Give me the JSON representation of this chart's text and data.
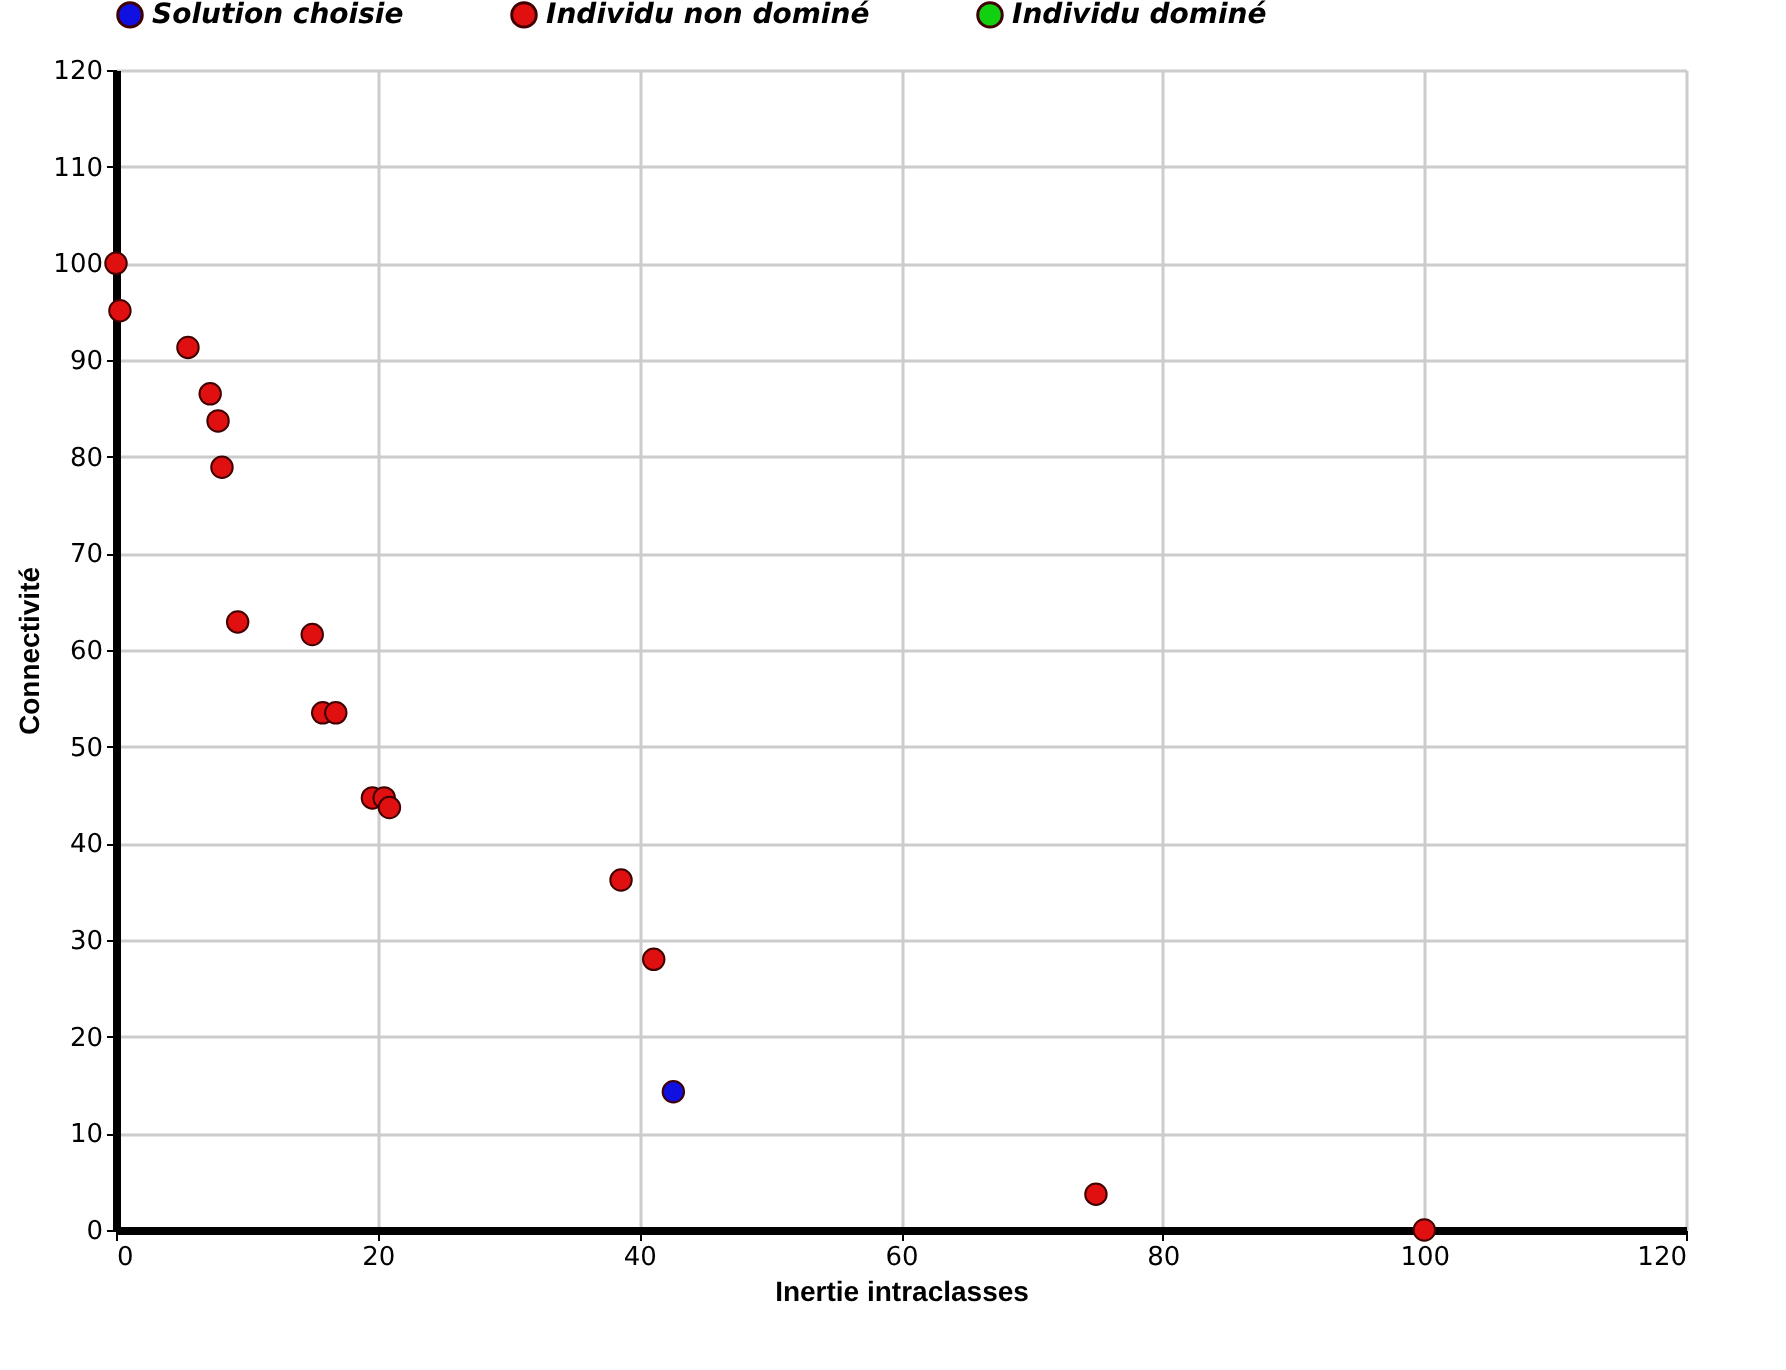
{
  "chart_data": {
    "type": "scatter",
    "xlabel": "Inertie intraclasses",
    "ylabel": "Connectivité",
    "xlim": [
      0,
      120
    ],
    "xticks": [
      0,
      20,
      40,
      60,
      80,
      100,
      120
    ],
    "ylim": [
      0,
      120
    ],
    "yticks": [
      0,
      10,
      20,
      30,
      40,
      50,
      60,
      70,
      80,
      90,
      100,
      110,
      120
    ],
    "grid": true,
    "legend": "top",
    "marker": "circle",
    "series": [
      {
        "name": "Solution choisie",
        "color": "#1010e0",
        "x": [
          42.6
        ],
        "values": [
          14.3
        ]
      },
      {
        "name": "Individu non dominé",
        "color": "#e01010",
        "x": [
          0,
          0.3,
          5.5,
          7.2,
          7.8,
          8.1,
          9.3,
          15.0,
          15.8,
          16.8,
          19.6,
          20.5,
          20.9,
          38.6,
          41.1,
          74.9,
          100
        ],
        "values": [
          100,
          95.1,
          91.3,
          86.5,
          83.7,
          78.9,
          62.9,
          61.6,
          53.5,
          53.5,
          44.7,
          44.7,
          43.7,
          36.2,
          28.0,
          3.7,
          0
        ]
      },
      {
        "name": "Individu dominé",
        "color": "#10d010"
      }
    ]
  }
}
